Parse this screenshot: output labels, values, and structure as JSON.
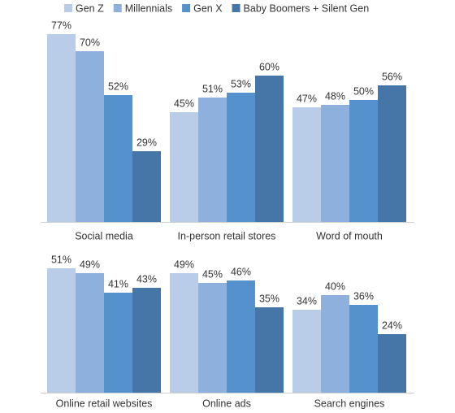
{
  "chart_data": {
    "type": "bar",
    "categories": [
      "Social media",
      "In-person retail stores",
      "Word of mouth",
      "Online retail websites",
      "Online ads",
      "Search engines"
    ],
    "series": [
      {
        "name": "Gen Z",
        "color": "#b9cde8",
        "values": [
          77,
          45,
          47,
          51,
          49,
          34
        ],
        "value_labels": [
          "77%",
          "45%",
          "47%",
          "51%",
          "49%",
          "34%"
        ]
      },
      {
        "name": "Millennials",
        "color": "#8db0dc",
        "values": [
          70,
          51,
          48,
          49,
          45,
          40
        ],
        "value_labels": [
          "70%",
          "51%",
          "48%",
          "49%",
          "45%",
          "40%"
        ]
      },
      {
        "name": "Gen X",
        "color": "#5591cc",
        "values": [
          52,
          53,
          50,
          41,
          46,
          36
        ],
        "value_labels": [
          "52%",
          "53%",
          "50%",
          "41%",
          "46%",
          "36%"
        ]
      },
      {
        "name": "Baby Boomers + Silent Gen",
        "color": "#4676a8",
        "values": [
          29,
          60,
          56,
          43,
          35,
          24
        ],
        "value_labels": [
          "29%",
          "60%",
          "56%",
          "43%",
          "35%",
          "24%"
        ]
      }
    ],
    "legend": "top"
  }
}
